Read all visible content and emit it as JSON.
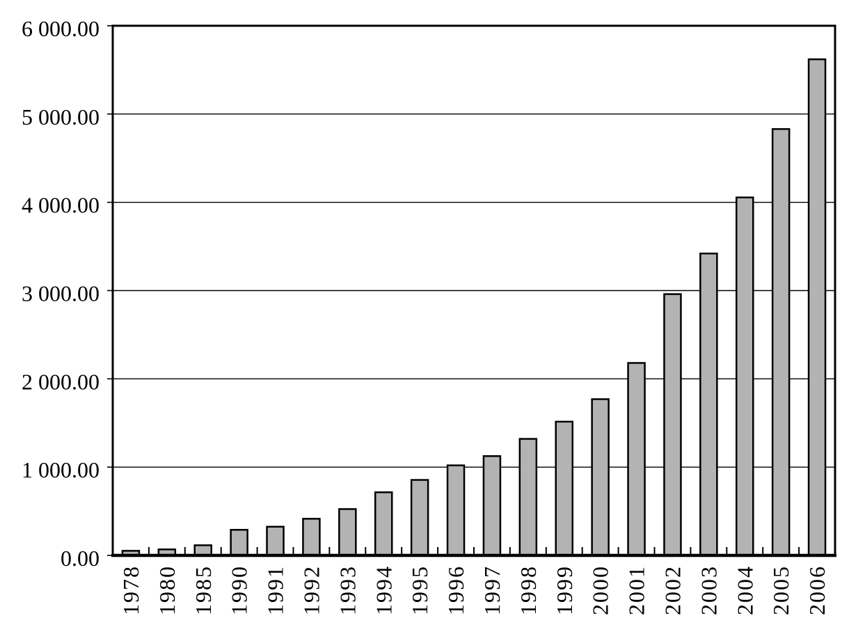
{
  "chart_data": {
    "type": "bar",
    "title": "",
    "xlabel": "",
    "ylabel": "",
    "categories": [
      "1978",
      "1980",
      "1985",
      "1990",
      "1991",
      "1992",
      "1993",
      "1994",
      "1995",
      "1996",
      "1997",
      "1998",
      "1999",
      "2000",
      "2001",
      "2002",
      "2003",
      "2004",
      "2005",
      "2006"
    ],
    "values": [
      52,
      68,
      115,
      290,
      325,
      415,
      525,
      715,
      855,
      1020,
      1125,
      1320,
      1515,
      1770,
      2180,
      2960,
      3420,
      4055,
      4830,
      5620
    ],
    "ylim": [
      0,
      6000
    ],
    "ytick_step": 1000,
    "ytick_labels": [
      "0.00",
      "1 000.00",
      "2 000.00",
      "3 000.00",
      "4 000.00",
      "5 000.00",
      "6 000.00"
    ],
    "grid": true,
    "legend": false,
    "colors": {
      "bar_fill": "#B3B3B3",
      "bar_stroke": "#000000",
      "axis": "#000000",
      "gridline": "#000000",
      "background": "#FFFFFF"
    }
  }
}
